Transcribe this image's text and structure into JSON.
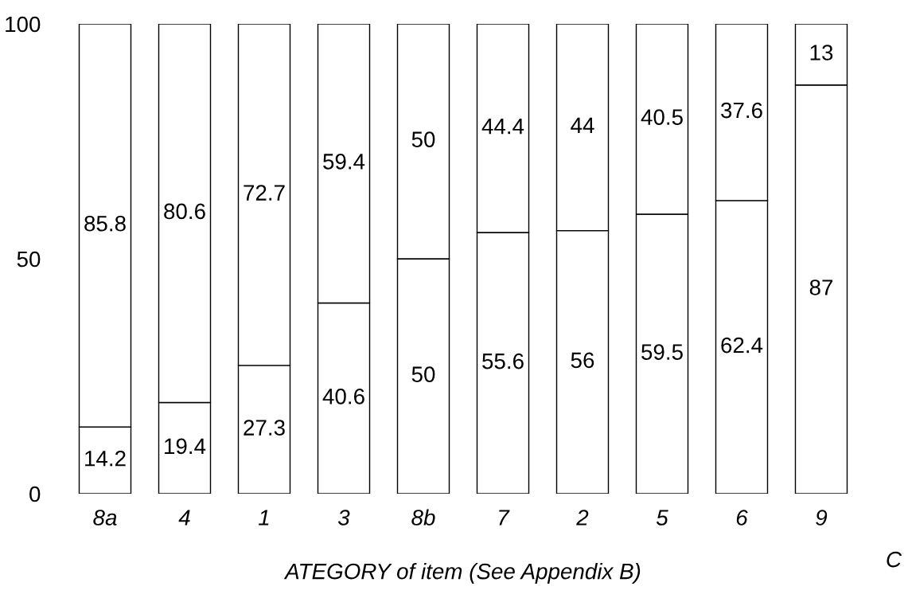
{
  "chart_data": {
    "type": "bar",
    "stacked": true,
    "xlabel": "ATEGORY of item (See Appendix B)",
    "annotations": [
      "C"
    ],
    "categories": [
      "8a",
      "4",
      "1",
      "3",
      "8b",
      "7",
      "2",
      "5",
      "6",
      "9"
    ],
    "series": [
      {
        "color": "#ffffff",
        "values": [
          14.2,
          19.4,
          27.3,
          40.6,
          50,
          55.6,
          56,
          59.5,
          62.4,
          87
        ]
      },
      {
        "color": "#ffffff",
        "values": [
          85.8,
          80.6,
          72.7,
          59.4,
          50,
          44.4,
          44,
          40.5,
          37.6,
          13
        ]
      }
    ],
    "ylim": [
      0,
      100
    ],
    "yticks": [
      0,
      50,
      100
    ],
    "data_labels": true,
    "grid": false,
    "legend": false
  }
}
